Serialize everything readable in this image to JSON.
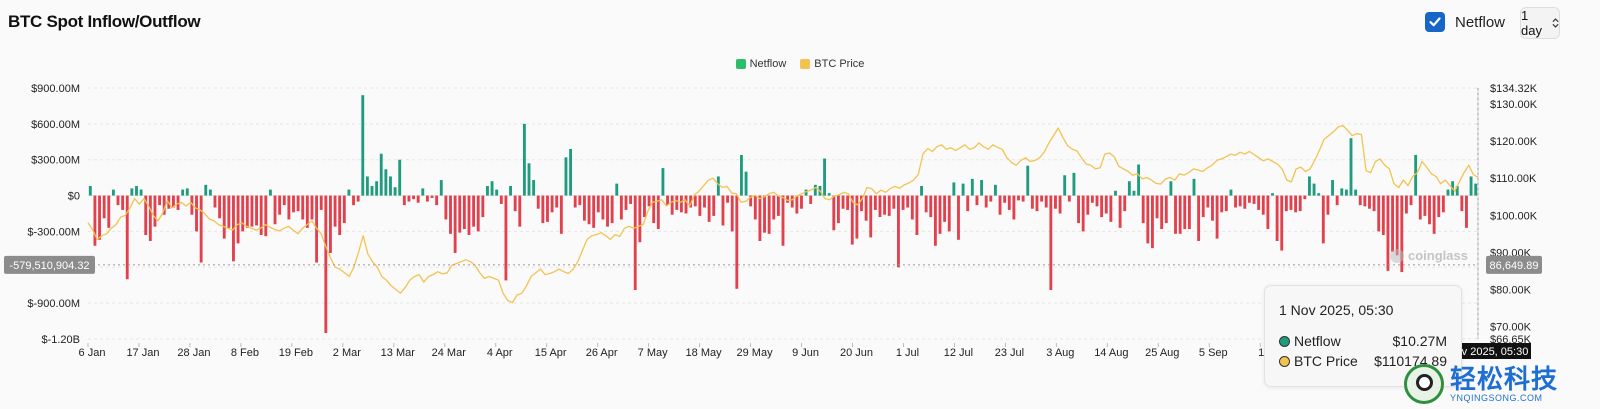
{
  "header": {
    "title": "BTC Spot Inflow/Outflow",
    "netflow_toggle_label": "Netflow",
    "netflow_checked": true,
    "interval_value": "1 day",
    "interval_icon": "chevron-updown-icon"
  },
  "colors": {
    "netflow_positive": "#1f9c7e",
    "netflow_negative": "#e2404d",
    "btc_price": "#f2c350",
    "toggle_checkbox": "#1765c6",
    "crosshair_label_bg": "#8c8c8c"
  },
  "legend": [
    {
      "label": "Netflow",
      "color": "#2ebd6b"
    },
    {
      "label": "BTC Price",
      "color": "#f2c350"
    }
  ],
  "crosshair": {
    "left_value": "-579,510,904.32",
    "right_value": "86,649.89",
    "date_tag": "v 2025, 05:30"
  },
  "tooltip": {
    "title": "1 Nov 2025, 05:30",
    "rows": [
      {
        "label": "Netflow",
        "value": "$10.27M",
        "dot_color": "#1f9c7e"
      },
      {
        "label": "BTC Price",
        "value": "$110174.89",
        "dot_color": "#f2c350"
      }
    ]
  },
  "watermark": {
    "cn": "轻松科技",
    "en": "YNQINGSONG.COM",
    "chart_brand": "coinglass"
  },
  "chart_data": {
    "type": "bar",
    "title": "BTC Spot Inflow/Outflow",
    "left_axis": {
      "ticks": [
        {
          "value": 900000000,
          "label": "$900.00M"
        },
        {
          "value": 600000000,
          "label": "$600.00M"
        },
        {
          "value": 300000000,
          "label": "$300.00M"
        },
        {
          "value": 0,
          "label": "$0"
        },
        {
          "value": -300000000,
          "label": "$-300.00M"
        },
        {
          "value": -600000000,
          "label": "$-600.00M"
        },
        {
          "value": -900000000,
          "label": "$-900.00M"
        },
        {
          "value": -1200000000,
          "label": "$-1.20B"
        }
      ],
      "range": [
        -1200000000,
        900000000
      ]
    },
    "right_axis": {
      "ticks": [
        {
          "value": 134320,
          "label": "$134.32K"
        },
        {
          "value": 130000,
          "label": "$130.00K"
        },
        {
          "value": 120000,
          "label": "$120.00K"
        },
        {
          "value": 110000,
          "label": "$110.00K"
        },
        {
          "value": 100000,
          "label": "$100.00K"
        },
        {
          "value": 90000,
          "label": "$90.00K"
        },
        {
          "value": 80000,
          "label": "$80.00K"
        },
        {
          "value": 70000,
          "label": "$70.00K"
        },
        {
          "value": 66650,
          "label": "$66.65K"
        }
      ],
      "range": [
        66650,
        134320
      ]
    },
    "x_ticks": [
      "6 Jan",
      "17 Jan",
      "28 Jan",
      "8 Feb",
      "19 Feb",
      "2 Mar",
      "13 Mar",
      "24 Mar",
      "4 Apr",
      "15 Apr",
      "26 Apr",
      "7 May",
      "18 May",
      "29 May",
      "9 Jun",
      "20 Jun",
      "1 Jul",
      "12 Jul",
      "23 Jul",
      "3 Aug",
      "14 Aug",
      "25 Aug",
      "5 Sep",
      "16"
    ],
    "x_range_days": [
      0,
      300
    ],
    "series": [
      {
        "name": "Netflow",
        "type": "bar",
        "unit": "USD",
        "values": [
          80000000.0,
          -420000000.0,
          -370000000.0,
          -190000000.0,
          -270000000.0,
          50000000.0,
          -80000000.0,
          -120000000.0,
          -700000000.0,
          60000000.0,
          80000000.0,
          50000000.0,
          -330000000.0,
          -380000000.0,
          -260000000.0,
          -80000000.0,
          -160000000.0,
          -110000000.0,
          -100000000.0,
          -120000000.0,
          50000000.0,
          60000000.0,
          -160000000.0,
          -300000000.0,
          -560000000.0,
          90000000.0,
          50000000.0,
          -100000000.0,
          -190000000.0,
          -360000000.0,
          -270000000.0,
          -550000000.0,
          -400000000.0,
          -300000000.0,
          -270000000.0,
          -260000000.0,
          -250000000.0,
          -330000000.0,
          -340000000.0,
          50000000.0,
          -240000000.0,
          -160000000.0,
          -80000000.0,
          -200000000.0,
          -140000000.0,
          -130000000.0,
          -200000000.0,
          -270000000.0,
          -200000000.0,
          -560000000.0,
          -120000000.0,
          -1150000000.0,
          -480000000.0,
          -260000000.0,
          -330000000.0,
          -230000000.0,
          50000000.0,
          -80000000.0,
          -50000000.0,
          840000000.0,
          160000000.0,
          80000000.0,
          120000000.0,
          350000000.0,
          220000000.0,
          160000000.0,
          70000000.0,
          300000000.0,
          -80000000.0,
          -50000000.0,
          -30000000.0,
          -60000000.0,
          60000000.0,
          -50000000.0,
          -20000000.0,
          -80000000.0,
          130000000.0,
          -200000000.0,
          -320000000.0,
          -480000000.0,
          -310000000.0,
          -280000000.0,
          -330000000.0,
          -260000000.0,
          -300000000.0,
          -180000000.0,
          80000000.0,
          120000000.0,
          50000000.0,
          -70000000.0,
          -710000000.0,
          80000000.0,
          -130000000.0,
          -260000000.0,
          600000000.0,
          270000000.0,
          130000000.0,
          -110000000.0,
          -230000000.0,
          -220000000.0,
          -140000000.0,
          -100000000.0,
          -320000000.0,
          320000000.0,
          390000000.0,
          -100000000.0,
          -80000000.0,
          -210000000.0,
          -240000000.0,
          -270000000.0,
          -140000000.0,
          -200000000.0,
          -260000000.0,
          -230000000.0,
          100000000.0,
          -200000000.0,
          -120000000.0,
          -70000000.0,
          -790000000.0,
          -390000000.0,
          -180000000.0,
          -90000000.0,
          -230000000.0,
          -280000000.0,
          230000000.0,
          -80000000.0,
          -160000000.0,
          -120000000.0,
          -140000000.0,
          -150000000.0,
          -100000000.0,
          -90000000.0,
          -170000000.0,
          -100000000.0,
          -220000000.0,
          -170000000.0,
          160000000.0,
          -250000000.0,
          -60000000.0,
          -300000000.0,
          -780000000.0,
          340000000.0,
          200000000.0,
          -90000000.0,
          -200000000.0,
          -380000000.0,
          -310000000.0,
          -320000000.0,
          -200000000.0,
          -170000000.0,
          -420000000.0,
          -60000000.0,
          -100000000.0,
          -150000000.0,
          -110000000.0,
          50000000.0,
          -70000000.0,
          90000000.0,
          80000000.0,
          310000000.0,
          20000000.0,
          -290000000.0,
          -230000000.0,
          -110000000.0,
          -120000000.0,
          -410000000.0,
          -360000000.0,
          -130000000.0,
          -210000000.0,
          -350000000.0,
          -120000000.0,
          -180000000.0,
          -160000000.0,
          -170000000.0,
          -110000000.0,
          -600000000.0,
          -120000000.0,
          -100000000.0,
          -200000000.0,
          -330000000.0,
          80000000.0,
          -140000000.0,
          -180000000.0,
          -420000000.0,
          -320000000.0,
          -220000000.0,
          -300000000.0,
          110000000.0,
          -370000000.0,
          100000000.0,
          -130000000.0,
          140000000.0,
          -80000000.0,
          130000000.0,
          -100000000.0,
          -50000000.0,
          90000000.0,
          -160000000.0,
          -60000000.0,
          -120000000.0,
          -200000000.0,
          -40000000.0,
          -50000000.0,
          250000000.0,
          -110000000.0,
          -130000000.0,
          -50000000.0,
          -100000000.0,
          -790000000.0,
          -110000000.0,
          -150000000.0,
          170000000.0,
          -50000000.0,
          190000000.0,
          -230000000.0,
          -300000000.0,
          -160000000.0,
          -60000000.0,
          -90000000.0,
          -180000000.0,
          -150000000.0,
          -220000000.0,
          40000000.0,
          -270000000.0,
          -130000000.0,
          120000000.0,
          40000000.0,
          260000000.0,
          -230000000.0,
          -400000000.0,
          -440000000.0,
          -190000000.0,
          -280000000.0,
          -230000000.0,
          120000000.0,
          -320000000.0,
          -320000000.0,
          -280000000.0,
          -280000000.0,
          140000000.0,
          -380000000.0,
          -180000000.0,
          -100000000.0,
          -210000000.0,
          -360000000.0,
          -140000000.0,
          -130000000.0,
          50000000.0,
          -100000000.0,
          -90000000.0,
          -110000000.0,
          -60000000.0,
          -70000000.0,
          -120000000.0,
          -160000000.0,
          -280000000.0,
          20000000.0,
          -380000000.0,
          -460000000.0,
          -130000000.0,
          -120000000.0,
          -140000000.0,
          -130000000.0,
          -30000000.0,
          160000000.0,
          100000000.0,
          20000000.0,
          -400000000.0,
          -160000000.0,
          130000000.0,
          -80000000.0,
          60000000.0,
          50000000.0,
          480000000.0,
          50000000.0,
          -80000000.0,
          -90000000.0,
          -110000000.0,
          -130000000.0,
          -300000000.0,
          -330000000.0,
          -630000000.0,
          -470000000.0,
          -500000000.0,
          -640000000.0,
          -150000000.0,
          -80000000.0,
          340000000.0,
          -200000000.0,
          -170000000.0,
          -240000000.0,
          -320000000.0,
          -180000000.0,
          -140000000.0,
          50000000.0,
          120000000.0,
          80000000.0,
          -130000000.0,
          -270000000.0,
          160000000.0,
          100000000.0
        ]
      },
      {
        "name": "BTC Price",
        "type": "line",
        "unit": "USD",
        "values": [
          98000,
          96000,
          93500,
          94500,
          95000,
          96500,
          97500,
          99500,
          100000,
          102000,
          104500,
          103000,
          104500,
          102500,
          100000,
          98500,
          100500,
          104000,
          102000,
          103000,
          103500,
          102500,
          103500,
          102000,
          101500,
          100500,
          99000,
          98500,
          97500,
          97000,
          96500,
          96000,
          97500,
          98000,
          97000,
          96500,
          96000,
          96500,
          97500,
          96800,
          96200,
          95800,
          96500,
          97000,
          96000,
          95000,
          96500,
          97500,
          98500,
          96500,
          95000,
          91500,
          88500,
          86000,
          85500,
          84500,
          83500,
          86000,
          90000,
          94500,
          89500,
          87500,
          86000,
          83500,
          82500,
          81000,
          80000,
          79000,
          80500,
          82500,
          83500,
          84000,
          82000,
          83500,
          84000,
          84800,
          84200,
          84500,
          86500,
          87000,
          87500,
          88000,
          87500,
          86500,
          84500,
          83000,
          83500,
          83000,
          82500,
          79000,
          77000,
          76500,
          78500,
          79000,
          81000,
          83500,
          84500,
          85500,
          84000,
          84300,
          84800,
          85500,
          84800,
          84300,
          85500,
          87500,
          90500,
          93500,
          94500,
          94800,
          95300,
          94500,
          93500,
          94800,
          94300,
          96500,
          97000,
          96500,
          97000,
          97500,
          101000,
          103500,
          103800,
          104200,
          102500,
          103500,
          104000,
          103500,
          104200,
          102500,
          105500,
          106500,
          108000,
          109500,
          110000,
          108500,
          107500,
          107800,
          106000,
          105800,
          103500,
          103800,
          104800,
          105400,
          104500,
          105000,
          105800,
          106200,
          105200,
          104800,
          104000,
          104200,
          105200,
          105800,
          106400,
          106800,
          107500,
          106500,
          104500,
          104200,
          105200,
          105500,
          106200,
          105800,
          103500,
          102800,
          104500,
          107500,
          107200,
          105800,
          106800,
          106200,
          107200,
          107800,
          107300,
          108200,
          108700,
          109500,
          111000,
          116500,
          118000,
          117200,
          118500,
          119000,
          117800,
          118200,
          117500,
          118200,
          119000,
          117800,
          118200,
          119500,
          118500,
          117800,
          119000,
          118300,
          117800,
          115500,
          114200,
          113500,
          114800,
          115500,
          114500,
          114800,
          115500,
          117000,
          119500,
          121500,
          123500,
          121000,
          118800,
          117800,
          117400,
          115500,
          113800,
          113500,
          112500,
          112800,
          116500,
          116800,
          115800,
          113200,
          112500,
          111800,
          110800,
          111200,
          109800,
          110200,
          109500,
          108600,
          108400,
          109800,
          110200,
          109500,
          111200,
          110800,
          111500,
          112500,
          112200,
          111800,
          112800,
          113500,
          114800,
          115200,
          115800,
          116500,
          116200,
          117000,
          116500,
          117200,
          116400,
          115500,
          114700,
          115200,
          114500,
          113800,
          112500,
          109500,
          109000,
          112500,
          113000,
          111800,
          112500,
          114800,
          117500,
          120500,
          121500,
          122500,
          123800,
          124200,
          123000,
          121500,
          122000,
          121800,
          112000,
          111500,
          114500,
          115200,
          113500,
          112500,
          108500,
          107500,
          109500,
          108000,
          110500,
          111500,
          114500,
          113000,
          111200,
          110500,
          108500,
          109500,
          108000,
          106500,
          109000,
          111500,
          113500,
          111000,
          110174.89
        ]
      }
    ]
  }
}
